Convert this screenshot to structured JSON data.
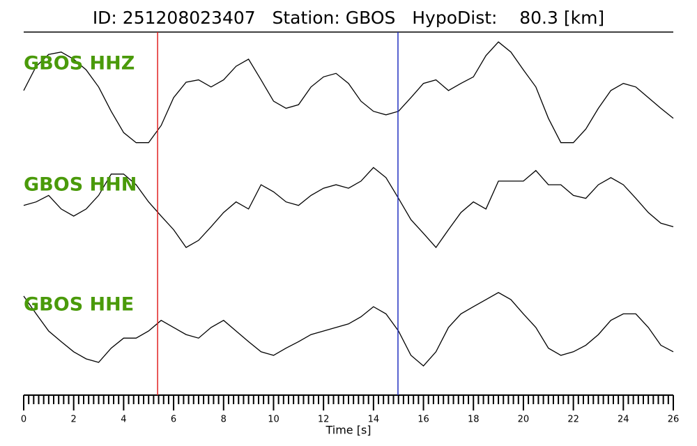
{
  "chart_data": {
    "type": "line",
    "title": "ID: 251208023407   Station: GBOS   HypoDist:    80.3 [km]",
    "x_label": "Time [s]",
    "xlim": [
      0,
      26
    ],
    "xticks": [
      0,
      2,
      4,
      6,
      8,
      10,
      12,
      14,
      16,
      18,
      20,
      22,
      24,
      26
    ],
    "xminorticks": [
      0.2,
      0.4,
      0.6,
      0.8,
      1,
      1.2,
      1.4,
      1.6,
      1.8,
      2.2,
      2.4,
      2.6,
      2.8,
      3,
      3.2,
      3.4,
      3.6,
      3.8,
      4.2,
      4.4,
      4.6,
      4.8,
      5,
      5.2,
      5.4,
      5.6,
      5.8,
      6.2,
      6.4,
      6.6,
      6.8,
      7,
      7.2,
      7.4,
      7.6,
      7.8,
      8.2,
      8.4,
      8.6,
      8.8,
      9,
      9.2,
      9.4,
      9.6,
      9.8,
      10.2,
      10.4,
      10.6,
      10.8,
      11,
      11.2,
      11.4,
      11.6,
      11.8,
      12.2,
      12.4,
      12.6,
      12.8,
      13,
      13.2,
      13.4,
      13.6,
      13.8,
      14.2,
      14.4,
      14.6,
      14.8,
      15,
      15.2,
      15.4,
      15.6,
      15.8,
      16.2,
      16.4,
      16.6,
      16.8,
      17,
      17.2,
      17.4,
      17.6,
      17.8,
      18.2,
      18.4,
      18.6,
      18.8,
      19,
      19.2,
      19.4,
      19.6,
      19.8,
      20.2,
      20.4,
      20.6,
      20.8,
      21,
      21.2,
      21.4,
      21.6,
      21.8,
      22.2,
      22.4,
      22.6,
      22.8,
      23,
      23.2,
      23.4,
      23.6,
      23.8,
      24.2,
      24.4,
      24.6,
      24.8,
      25,
      25.2,
      25.4,
      25.6,
      25.8
    ],
    "ylim": [
      -1,
      1
    ],
    "vlines": [
      {
        "x": 5.36,
        "color": "#e02020"
      },
      {
        "x": 14.98,
        "color": "#2030c0"
      }
    ],
    "label_color": "#4a9a0a",
    "x": [
      0,
      0.5,
      1,
      1.5,
      2,
      2.5,
      3,
      3.5,
      4,
      4.5,
      5,
      5.5,
      6,
      6.5,
      7,
      7.5,
      8,
      8.5,
      9,
      9.5,
      10,
      10.5,
      11,
      11.5,
      12,
      12.5,
      13,
      13.5,
      14,
      14.5,
      15,
      15.5,
      16,
      16.5,
      17,
      17.5,
      18,
      18.5,
      19,
      19.5,
      20,
      20.5,
      21,
      21.5,
      22,
      22.5,
      23,
      23.5,
      24,
      24.5,
      25,
      25.5,
      26
    ],
    "series": [
      {
        "name": "GBOS HHZ",
        "color": "#000000",
        "values": [
          0.06,
          0.47,
          0.67,
          0.71,
          0.59,
          0.41,
          0.12,
          -0.29,
          -0.65,
          -0.82,
          -0.82,
          -0.53,
          -0.06,
          0.2,
          0.24,
          0.12,
          0.24,
          0.47,
          0.59,
          0.24,
          -0.12,
          -0.24,
          -0.18,
          0.12,
          0.29,
          0.35,
          0.18,
          -0.12,
          -0.29,
          -0.35,
          -0.29,
          -0.06,
          0.18,
          0.24,
          0.06,
          0.18,
          0.29,
          0.65,
          0.88,
          0.71,
          0.41,
          0.12,
          -0.41,
          -0.82,
          -0.82,
          -0.59,
          -0.24,
          0.06,
          0.18,
          0.12,
          -0.06,
          -0.24,
          -0.41
        ]
      },
      {
        "name": "GBOS HHN",
        "color": "#000000",
        "values": [
          0.12,
          0.18,
          0.29,
          0.06,
          -0.06,
          0.06,
          0.29,
          0.65,
          0.65,
          0.47,
          0.18,
          -0.06,
          -0.29,
          -0.59,
          -0.47,
          -0.24,
          0,
          0.18,
          0.06,
          0.47,
          0.35,
          0.18,
          0.12,
          0.29,
          0.41,
          0.47,
          0.41,
          0.53,
          0.76,
          0.59,
          0.24,
          -0.12,
          -0.35,
          -0.59,
          -0.29,
          0,
          0.18,
          0.06,
          0.53,
          0.53,
          0.53,
          0.71,
          0.47,
          0.47,
          0.29,
          0.24,
          0.47,
          0.59,
          0.47,
          0.24,
          0,
          -0.18,
          -0.24
        ]
      },
      {
        "name": "GBOS HHE",
        "color": "#000000",
        "values": [
          0.59,
          0.29,
          0,
          -0.18,
          -0.35,
          -0.47,
          -0.53,
          -0.29,
          -0.12,
          -0.12,
          0,
          0.18,
          0.06,
          -0.06,
          -0.12,
          0.06,
          0.18,
          0,
          -0.18,
          -0.35,
          -0.41,
          -0.29,
          -0.18,
          -0.06,
          0,
          0.06,
          0.12,
          0.24,
          0.41,
          0.29,
          0,
          -0.41,
          -0.59,
          -0.35,
          0.06,
          0.29,
          0.41,
          0.53,
          0.65,
          0.53,
          0.29,
          0.06,
          -0.29,
          -0.41,
          -0.35,
          -0.24,
          -0.06,
          0.18,
          0.29,
          0.29,
          0.06,
          -0.24,
          -0.35
        ]
      }
    ]
  }
}
